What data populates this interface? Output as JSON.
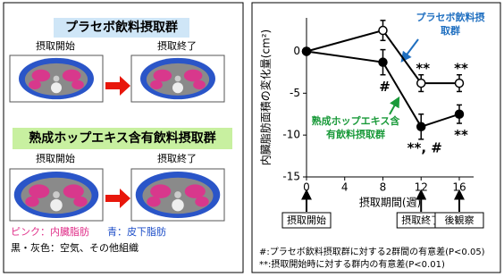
{
  "left_panel": {
    "group1_title": "プラセボ飲料摂取群",
    "group2_title": "熟成ホップエキス含有飲料摂取群",
    "before": "摂取開始",
    "after": "摂取終了",
    "legend_pink": "ピンク：内臓脂肪",
    "legend_blue": "青：皮下脂肪",
    "legend_other": "黒・灰色：空気、その他組織"
  },
  "chart_data": {
    "type": "line",
    "y_label": "内臓脂肪面積の変化量(cm²)",
    "x_label": "摂取期間(週)",
    "x": [
      0,
      8,
      12,
      16
    ],
    "xlim": [
      0,
      17.5
    ],
    "xticks": [
      0,
      4,
      8,
      12,
      16
    ],
    "ylim": [
      -15,
      4
    ],
    "yticks": [
      -15,
      -10,
      -5,
      0
    ],
    "series": [
      {
        "name": "プラセボ飲料摂取群",
        "color": "#000000",
        "marker_fill": "#ffffff",
        "label_color": "#1f6fc0",
        "values": [
          0,
          2.5,
          -3.8,
          -3.8
        ],
        "errors": [
          0,
          1.2,
          1,
          1
        ],
        "point_labels": [
          null,
          null,
          "**",
          "**"
        ]
      },
      {
        "name": "熟成ホップエキス含有飲料摂取群",
        "color": "#000000",
        "marker_fill": "#000000",
        "label_color": "#1a9a3a",
        "values": [
          0,
          -1.3,
          -9,
          -7.5
        ],
        "errors": [
          0,
          1.5,
          1.5,
          1.1
        ],
        "point_labels": [
          null,
          "#",
          "**, #",
          "**"
        ]
      }
    ],
    "milestones": [
      {
        "x": 0,
        "label": "摂取開始"
      },
      {
        "x": 12,
        "label": "摂取終了"
      },
      {
        "x": 16,
        "label": "後観察"
      }
    ],
    "footnotes": [
      "#:プラセボ飲料摂取群に対する2群間の有意差(P<0.05)",
      "**:摂取開始時に対する群内の有意差(P<0.01)"
    ]
  }
}
